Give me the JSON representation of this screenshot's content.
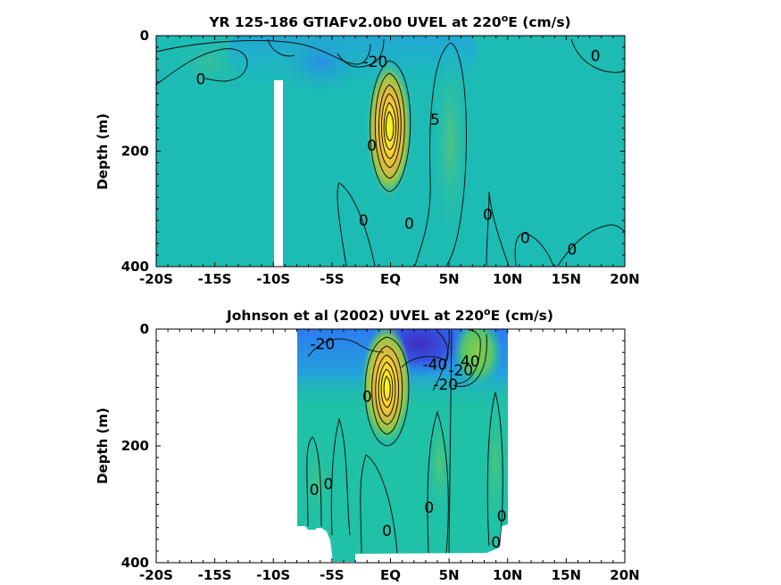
{
  "chart_data": [
    {
      "type": "heatmap",
      "title": "YR 125-186 GTIAFv2.0b0 UVEL at 220",
      "title_sup": "o",
      "title_tail": "E (cm/s)",
      "ylabel": "Depth (m)",
      "xlim": [
        -20,
        20
      ],
      "ylim": [
        400,
        0
      ],
      "xticks": [
        -20,
        -15,
        -10,
        -5,
        0,
        5,
        10,
        15,
        20
      ],
      "xtick_labels": [
        "-20S",
        "-15S",
        "-10S",
        "-5S",
        "EQ",
        "5N",
        "10N",
        "15N",
        "20N"
      ],
      "yticks": [
        0,
        200,
        400
      ],
      "ytick_labels": [
        "0",
        "200",
        "400"
      ],
      "colormap": [
        "#3e26a8",
        "#2c76f6",
        "#1ea6d6",
        "#1cbfb1",
        "#8ccb4c",
        "#f1be39",
        "#f9fb15"
      ],
      "background_color": "#1cbcb4",
      "core": {
        "x": 0,
        "y": 150,
        "max_value": 100
      },
      "contour_labels": [
        {
          "text": "-20",
          "x": -1.3,
          "y": 45
        },
        {
          "text": "0",
          "x": -16.2,
          "y": 75
        },
        {
          "text": "0",
          "x": 17.5,
          "y": 35
        },
        {
          "text": "0",
          "x": -2.3,
          "y": 320
        },
        {
          "text": "0",
          "x": 1.6,
          "y": 325
        },
        {
          "text": "0",
          "x": 8.3,
          "y": 310
        },
        {
          "text": "0",
          "x": 11.5,
          "y": 350
        },
        {
          "text": "0",
          "x": 15.5,
          "y": 370
        },
        {
          "text": "5",
          "x": 3.8,
          "y": 145
        },
        {
          "text": "0",
          "x": -1.6,
          "y": 190
        }
      ]
    },
    {
      "type": "heatmap",
      "title": "Johnson et al (2002) UVEL at 220",
      "title_sup": "o",
      "title_tail": "E (cm/s)",
      "ylabel": "Depth (m)",
      "xlim": [
        -20,
        20
      ],
      "ylim": [
        400,
        0
      ],
      "data_extent_x": [
        -7.7,
        10
      ],
      "xticks": [
        -20,
        -15,
        -10,
        -5,
        0,
        5,
        10,
        15,
        20
      ],
      "xtick_labels": [
        "-20S",
        "-15S",
        "-10S",
        "-5S",
        "EQ",
        "5N",
        "10N",
        "15N",
        "20N"
      ],
      "yticks": [
        0,
        200,
        400
      ],
      "ytick_labels": [
        "0",
        "200",
        "400"
      ],
      "colormap": [
        "#3e26a8",
        "#2c76f6",
        "#1ea6d6",
        "#1cbfb1",
        "#8ccb4c",
        "#f1be39",
        "#f9fb15"
      ],
      "background_color": "#1fc1a7",
      "core": {
        "x": 0,
        "y": 105,
        "max_value": 100
      },
      "contour_labels": [
        {
          "text": "-20",
          "x": -5.8,
          "y": 25
        },
        {
          "text": "-40",
          "x": 3.8,
          "y": 60
        },
        {
          "text": "-20",
          "x": 4.7,
          "y": 95
        },
        {
          "text": "-20",
          "x": 6.0,
          "y": 70
        },
        {
          "text": "40",
          "x": 6.8,
          "y": 55
        },
        {
          "text": "0",
          "x": -2.0,
          "y": 115
        },
        {
          "text": "0",
          "x": -6.5,
          "y": 275
        },
        {
          "text": "0",
          "x": -5.3,
          "y": 265
        },
        {
          "text": "0",
          "x": 3.3,
          "y": 305
        },
        {
          "text": "0",
          "x": -0.3,
          "y": 345
        },
        {
          "text": "0",
          "x": 9.5,
          "y": 320
        },
        {
          "text": "0",
          "x": 9.0,
          "y": 365
        }
      ]
    }
  ]
}
